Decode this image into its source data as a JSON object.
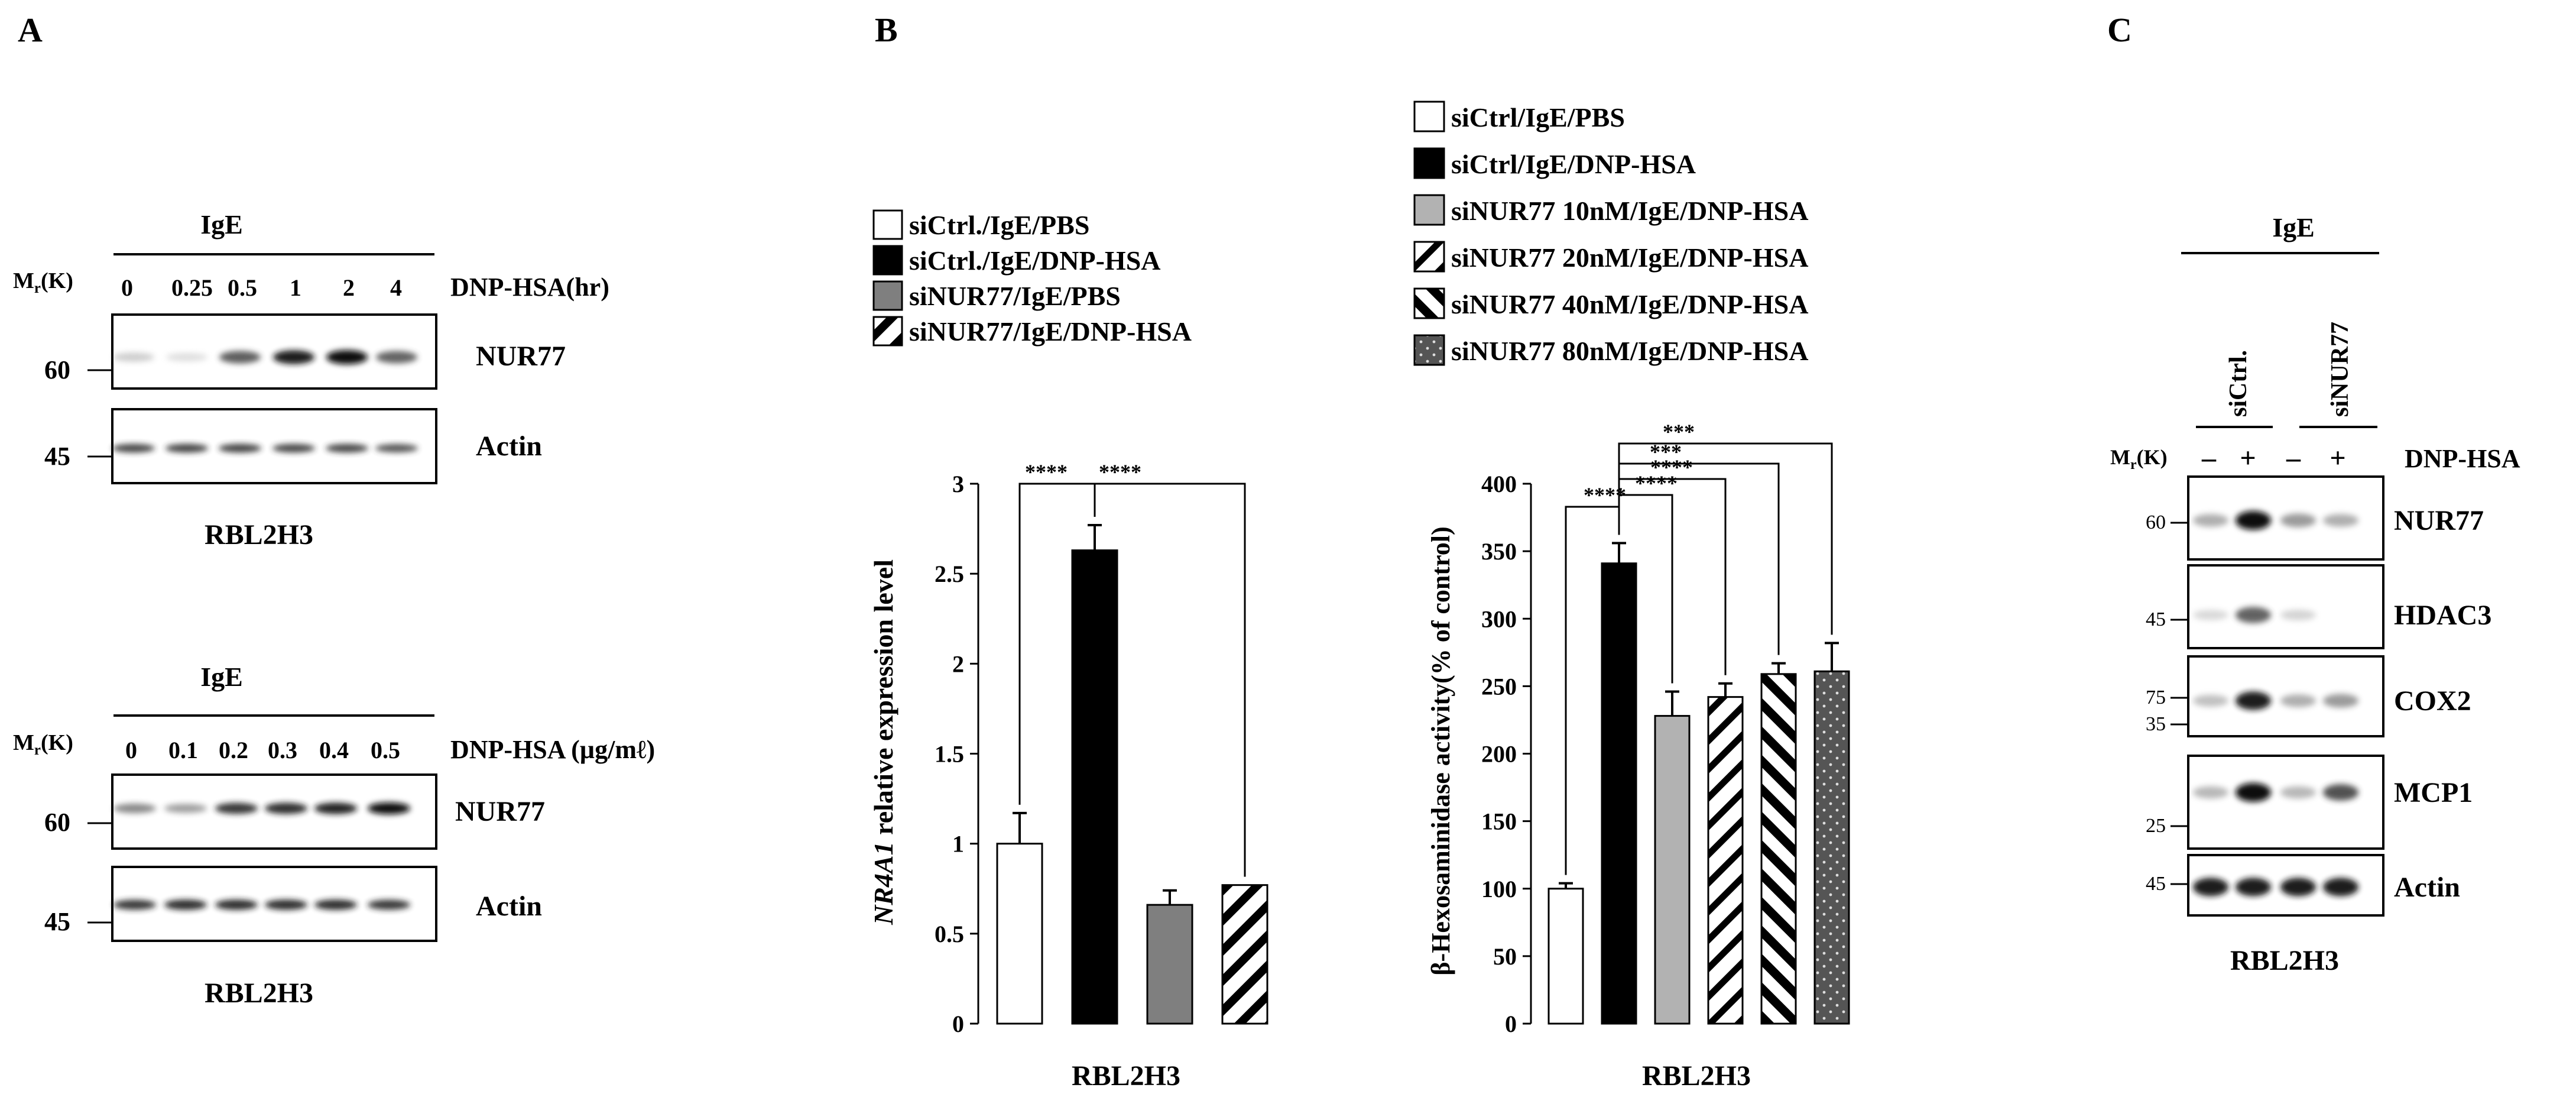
{
  "panels": {
    "a": "A",
    "b": "B",
    "c": "C"
  },
  "panel_a": {
    "top": {
      "header": "IgE",
      "mr_label": "Mr(K)",
      "treatment": "DNP-HSA(hr)",
      "lanes": [
        "0",
        "0.25",
        "0.5",
        "1",
        "2",
        "4"
      ],
      "markers": [
        "60",
        "45"
      ],
      "bands": [
        "NUR77",
        "Actin"
      ],
      "nur77_intensity": [
        0.18,
        0.06,
        0.72,
        0.95,
        1.0,
        0.7
      ],
      "cell_line": "RBL2H3"
    },
    "bottom": {
      "header": "IgE",
      "mr_label": "Mr(K)",
      "treatment": "DNP-HSA (µg/mℓ)",
      "lanes": [
        "0",
        "0.1",
        "0.2",
        "0.3",
        "0.4",
        "0.5"
      ],
      "markers": [
        "60",
        "45"
      ],
      "bands": [
        "NUR77",
        "Actin"
      ],
      "nur77_intensity": [
        0.55,
        0.45,
        0.85,
        0.88,
        0.92,
        1.0
      ],
      "cell_line": "RBL2H3"
    }
  },
  "panel_c": {
    "header": "IgE",
    "groups": [
      "siCtrl.",
      "siNUR77"
    ],
    "mr_label": "Mr(K)",
    "signs": [
      "–",
      "+",
      "–",
      "+"
    ],
    "treatment": "DNP-HSA",
    "blots": [
      {
        "name": "NUR77",
        "markers": [
          "60"
        ],
        "intensity": [
          0.35,
          1.0,
          0.45,
          0.35
        ]
      },
      {
        "name": "HDAC3",
        "markers": [
          "45"
        ],
        "intensity": [
          0.08,
          0.7,
          0.12,
          0.0
        ]
      },
      {
        "name": "COX2",
        "markers": [
          "75"
        ],
        "intensity": [
          0.25,
          0.95,
          0.35,
          0.45
        ]
      },
      {
        "name": "MCP1",
        "markers": [
          "35",
          "25"
        ],
        "intensity": [
          0.3,
          1.0,
          0.3,
          0.75
        ]
      },
      {
        "name": "Actin",
        "markers": [
          "45"
        ],
        "intensity": [
          0.95,
          0.95,
          0.95,
          0.95
        ]
      }
    ],
    "cell_line": "RBL2H3"
  },
  "chart_data": [
    {
      "type": "bar",
      "ylabel_italic": "NR4A1",
      "ylabel_rest": " relative expression level",
      "xlabel": "RBL2H3",
      "ylim": [
        0,
        3
      ],
      "yticks": [
        "0",
        "0.5",
        "1",
        "1.5",
        "2",
        "2.5",
        "3"
      ],
      "legend": [
        {
          "name": "siCtrl./IgE/PBS",
          "pattern": "white"
        },
        {
          "name": "siCtrl./IgE/DNP-HSA",
          "pattern": "black"
        },
        {
          "name": "siNUR77/IgE/PBS",
          "pattern": "gray"
        },
        {
          "name": "siNUR77/IgE/DNP-HSA",
          "pattern": "hatch"
        }
      ],
      "values": [
        1.0,
        2.63,
        0.66,
        0.77
      ],
      "errors": [
        0.17,
        0.14,
        0.08,
        0.0
      ],
      "significance": [
        {
          "from": 0,
          "to": 1,
          "label": "****"
        },
        {
          "from": 1,
          "to": 3,
          "label": "****"
        }
      ]
    },
    {
      "type": "bar",
      "ylabel": "β-Hexosaminidase activity(% of control)",
      "xlabel": "RBL2H3",
      "ylim": [
        0,
        400
      ],
      "yticks": [
        "0",
        "50",
        "100",
        "150",
        "200",
        "250",
        "300",
        "350",
        "400"
      ],
      "legend": [
        {
          "name": "siCtrl/IgE/PBS",
          "pattern": "white"
        },
        {
          "name": "siCtrl/IgE/DNP-HSA",
          "pattern": "black"
        },
        {
          "name": "siNUR77 10nM/IgE/DNP-HSA",
          "pattern": "lightgray"
        },
        {
          "name": "siNUR77 20nM/IgE/DNP-HSA",
          "pattern": "hatch-thin"
        },
        {
          "name": "siNUR77 40nM/IgE/DNP-HSA",
          "pattern": "hatch-thick"
        },
        {
          "name": "siNUR77 80nM/IgE/DNP-HSA",
          "pattern": "dots"
        }
      ],
      "values": [
        100,
        341,
        228,
        242,
        259,
        261
      ],
      "errors": [
        4,
        15,
        18,
        10,
        8,
        21
      ],
      "significance": [
        {
          "from": 0,
          "to": 1,
          "label": "****"
        },
        {
          "from": 1,
          "to": 2,
          "label": "****"
        },
        {
          "from": 1,
          "to": 3,
          "label": "****"
        },
        {
          "from": 1,
          "to": 4,
          "label": "***"
        },
        {
          "from": 1,
          "to": 5,
          "label": "***"
        }
      ]
    }
  ]
}
